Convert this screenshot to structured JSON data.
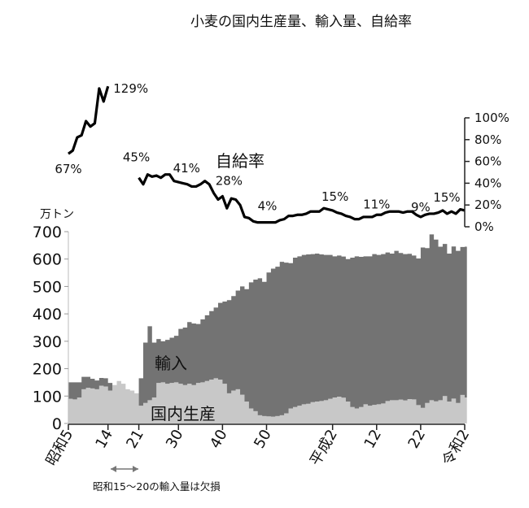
{
  "chart_data": {
    "type": "area",
    "title": "小麦の国内生産量、輸入量、自給率",
    "left_axis": {
      "unit": "万トン",
      "ticks": [
        0,
        100,
        200,
        300,
        400,
        500,
        600,
        700
      ],
      "tick_labels": [
        "0",
        "100",
        "200",
        "300",
        "400",
        "500",
        "600",
        "700"
      ],
      "ylim": [
        0,
        700
      ]
    },
    "right_axis": {
      "ticks": [
        0,
        20,
        40,
        60,
        80,
        100
      ],
      "tick_labels": [
        "0%",
        "20%",
        "40%",
        "60%",
        "80%",
        "100%"
      ],
      "ylim": [
        0,
        100
      ]
    },
    "x_ticks": [
      {
        "year": 1930,
        "label": "昭和5"
      },
      {
        "year": 1939,
        "label": "14"
      },
      {
        "year": 1946,
        "label": "21"
      },
      {
        "year": 1955,
        "label": "30"
      },
      {
        "year": 1965,
        "label": "40"
      },
      {
        "year": 1975,
        "label": "50"
      },
      {
        "year": 1990,
        "label": "平成2"
      },
      {
        "year": 2000,
        "label": "12"
      },
      {
        "year": 2010,
        "label": "22"
      },
      {
        "year": 2020,
        "label": "令和2"
      }
    ],
    "xlim": [
      1930,
      2020
    ],
    "series": [
      {
        "name": "国内生産",
        "color": "#c8c8c8",
        "x": [
          1930,
          1931,
          1932,
          1933,
          1934,
          1935,
          1936,
          1937,
          1938,
          1939,
          1940,
          1941,
          1942,
          1943,
          1944,
          1945,
          1946,
          1947,
          1948,
          1949,
          1950,
          1951,
          1952,
          1953,
          1954,
          1955,
          1956,
          1957,
          1958,
          1959,
          1960,
          1961,
          1962,
          1963,
          1964,
          1965,
          1966,
          1967,
          1968,
          1969,
          1970,
          1971,
          1972,
          1973,
          1974,
          1975,
          1976,
          1977,
          1978,
          1979,
          1980,
          1981,
          1982,
          1983,
          1984,
          1985,
          1986,
          1987,
          1988,
          1989,
          1990,
          1991,
          1992,
          1993,
          1994,
          1995,
          1996,
          1997,
          1998,
          1999,
          2000,
          2001,
          2002,
          2003,
          2004,
          2005,
          2006,
          2007,
          2008,
          2009,
          2010,
          2011,
          2012,
          2013,
          2014,
          2015,
          2016,
          2017,
          2018,
          2019,
          2020
        ],
        "values": [
          90,
          88,
          95,
          125,
          130,
          128,
          125,
          138,
          135,
          120,
          140,
          155,
          145,
          125,
          120,
          110,
          65,
          75,
          85,
          95,
          148,
          150,
          145,
          148,
          150,
          145,
          140,
          145,
          140,
          148,
          150,
          155,
          160,
          165,
          160,
          145,
          110,
          120,
          125,
          105,
          80,
          55,
          45,
          30,
          27,
          26,
          25,
          27,
          30,
          37,
          55,
          60,
          65,
          70,
          72,
          78,
          80,
          82,
          85,
          90,
          95,
          98,
          94,
          80,
          60,
          55,
          60,
          70,
          65,
          68,
          70,
          73,
          82,
          85,
          85,
          87,
          84,
          89,
          88,
          67,
          57,
          75,
          85,
          81,
          85,
          100,
          80,
          91,
          75,
          104,
          95
        ]
      },
      {
        "name": "輸入",
        "color": "#737373",
        "x": [
          1930,
          1931,
          1932,
          1933,
          1934,
          1935,
          1936,
          1937,
          1938,
          1939,
          1946,
          1947,
          1948,
          1949,
          1950,
          1951,
          1952,
          1953,
          1954,
          1955,
          1956,
          1957,
          1958,
          1959,
          1960,
          1961,
          1962,
          1963,
          1964,
          1965,
          1966,
          1967,
          1968,
          1969,
          1970,
          1971,
          1972,
          1973,
          1974,
          1975,
          1976,
          1977,
          1978,
          1979,
          1980,
          1981,
          1982,
          1983,
          1984,
          1985,
          1986,
          1987,
          1988,
          1989,
          1990,
          1991,
          1992,
          1993,
          1994,
          1995,
          1996,
          1997,
          1998,
          1999,
          2000,
          2001,
          2002,
          2003,
          2004,
          2005,
          2006,
          2007,
          2008,
          2009,
          2010,
          2011,
          2012,
          2013,
          2014,
          2015,
          2016,
          2017,
          2018,
          2019,
          2020
        ],
        "values": [
          60,
          62,
          55,
          45,
          40,
          35,
          32,
          28,
          30,
          28,
          100,
          220,
          270,
          200,
          160,
          150,
          160,
          165,
          170,
          200,
          210,
          225,
          225,
          215,
          230,
          240,
          250,
          258,
          280,
          300,
          340,
          345,
          360,
          395,
          410,
          460,
          480,
          500,
          490,
          525,
          540,
          545,
          560,
          550,
          530,
          545,
          545,
          545,
          545,
          540,
          540,
          535,
          530,
          525,
          515,
          515,
          515,
          520,
          545,
          555,
          548,
          540,
          545,
          550,
          545,
          545,
          542,
          535,
          545,
          535,
          534,
          530,
          525,
          535,
          585,
          565,
          605,
          590,
          560,
          555,
          540,
          555,
          555,
          540,
          550
        ]
      }
    ],
    "self_sufficiency": {
      "name": "自給率",
      "x": [
        1930,
        1931,
        1932,
        1933,
        1934,
        1935,
        1936,
        1937,
        1938,
        1939,
        1946,
        1947,
        1948,
        1949,
        1950,
        1951,
        1952,
        1953,
        1954,
        1955,
        1956,
        1957,
        1958,
        1959,
        1960,
        1961,
        1962,
        1963,
        1964,
        1965,
        1966,
        1967,
        1968,
        1969,
        1970,
        1971,
        1972,
        1973,
        1974,
        1975,
        1976,
        1977,
        1978,
        1979,
        1980,
        1981,
        1982,
        1983,
        1984,
        1985,
        1986,
        1987,
        1988,
        1989,
        1990,
        1991,
        1992,
        1993,
        1994,
        1995,
        1996,
        1997,
        1998,
        1999,
        2000,
        2001,
        2002,
        2003,
        2004,
        2005,
        2006,
        2007,
        2008,
        2009,
        2010,
        2011,
        2012,
        2013,
        2014,
        2015,
        2016,
        2017,
        2018,
        2019,
        2020
      ],
      "values": [
        67,
        70,
        82,
        84,
        97,
        92,
        95,
        127,
        115,
        129,
        45,
        39,
        48,
        46,
        47,
        45,
        48,
        48,
        42,
        41,
        40,
        39,
        37,
        37,
        39,
        42,
        39,
        31,
        25,
        28,
        17,
        26,
        25,
        20,
        9,
        8,
        5,
        4,
        4,
        4,
        4,
        4,
        6,
        7,
        10,
        10,
        11,
        11,
        12,
        14,
        14,
        14,
        17,
        16,
        15,
        13,
        12,
        10,
        9,
        7,
        7,
        9,
        9,
        9,
        11,
        11,
        13,
        14,
        14,
        14,
        13,
        14,
        14,
        11,
        9,
        11,
        12,
        12,
        13,
        15,
        12,
        14,
        12,
        16,
        15
      ]
    },
    "annotations": [
      {
        "text": "67%",
        "x": 1930,
        "y": 67
      },
      {
        "text": "129%",
        "x": 1939,
        "y": 129
      },
      {
        "text": "45%",
        "x": 1946,
        "y": 45
      },
      {
        "text": "41%",
        "x": 1955,
        "y": 41
      },
      {
        "text": "28%",
        "x": 1965,
        "y": 28
      },
      {
        "text": "4%",
        "x": 1975,
        "y": 4
      },
      {
        "text": "15%",
        "x": 1990,
        "y": 15
      },
      {
        "text": "11%",
        "x": 2000,
        "y": 11
      },
      {
        "text": "9%",
        "x": 2010,
        "y": 9
      },
      {
        "text": "15%",
        "x": 2020,
        "y": 15
      }
    ],
    "labels": {
      "import": "輸入",
      "domestic": "国内生産",
      "self_sufficiency": "自給率"
    },
    "note": "昭和15～20の輸入量は欠損"
  }
}
